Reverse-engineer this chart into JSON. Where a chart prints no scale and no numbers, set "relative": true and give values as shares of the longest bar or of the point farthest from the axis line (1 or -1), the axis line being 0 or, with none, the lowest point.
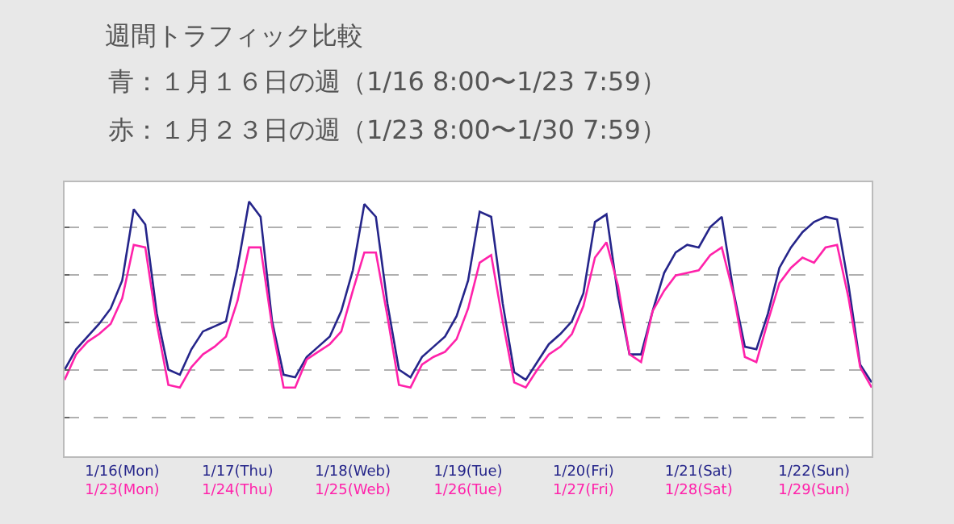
{
  "chart_data": {
    "type": "line",
    "title": "週間トラフィック比較",
    "subtitle": "青：１月１６日の週（1/16 8:00〜1/23 7:59）",
    "annotations": [
      "赤：１月２３日の週（1/23 8:00〜1/30 7:59）"
    ],
    "relative": true,
    "grid": "y",
    "marker": "none",
    "line_style": "solid",
    "categories": [
      null,
      null,
      null,
      null,
      null,
      "1/16(Mon)\n1/23(Mon)",
      null,
      null,
      null,
      null,
      null,
      null,
      null,
      null,
      null,
      "1/17(Thu)\n1/24(Thu)",
      null,
      null,
      null,
      null,
      null,
      null,
      null,
      null,
      null,
      "1/18(Web)\n1/25(Web)",
      null,
      null,
      null,
      null,
      null,
      null,
      null,
      null,
      null,
      "1/19(Tue)\n1/26(Tue)",
      null,
      null,
      null,
      null,
      null,
      null,
      null,
      null,
      null,
      "1/20(Fri)\n1/27(Fri)",
      null,
      null,
      null,
      null,
      null,
      null,
      null,
      null,
      null,
      "1/21(Sat)\n1/28(Sat)",
      null,
      null,
      null,
      null,
      null,
      null,
      null,
      null,
      null,
      "1/22(Sun)\n1/29(Sun)",
      null,
      null,
      null,
      null,
      null
    ],
    "series": [
      {
        "color": "#25258a",
        "values": [
          0.34,
          0.42,
          0.47,
          0.52,
          0.58,
          0.69,
          0.97,
          0.91,
          0.56,
          0.34,
          0.32,
          0.42,
          0.49,
          0.51,
          0.53,
          0.74,
          1.0,
          0.94,
          0.53,
          0.32,
          0.31,
          0.39,
          0.43,
          0.47,
          0.57,
          0.73,
          0.99,
          0.94,
          0.6,
          0.34,
          0.31,
          0.39,
          0.43,
          0.47,
          0.55,
          0.69,
          0.96,
          0.94,
          0.6,
          0.33,
          0.3,
          0.37,
          0.44,
          0.48,
          0.53,
          0.64,
          0.92,
          0.95,
          0.63,
          0.4,
          0.4,
          0.57,
          0.72,
          0.8,
          0.83,
          0.82,
          0.9,
          0.94,
          0.65,
          0.43,
          0.42,
          0.56,
          0.74,
          0.82,
          0.88,
          0.92,
          0.94,
          0.93,
          0.67,
          0.36,
          0.29
        ]
      },
      {
        "color": "#ff22aa",
        "values": [
          0.3,
          0.4,
          0.45,
          0.48,
          0.52,
          0.62,
          0.83,
          0.82,
          0.52,
          0.28,
          0.27,
          0.35,
          0.4,
          0.43,
          0.47,
          0.61,
          0.82,
          0.82,
          0.51,
          0.27,
          0.27,
          0.38,
          0.41,
          0.44,
          0.49,
          0.65,
          0.8,
          0.8,
          0.55,
          0.28,
          0.27,
          0.36,
          0.39,
          0.41,
          0.46,
          0.58,
          0.76,
          0.79,
          0.53,
          0.29,
          0.27,
          0.34,
          0.4,
          0.43,
          0.48,
          0.59,
          0.78,
          0.84,
          0.67,
          0.4,
          0.37,
          0.57,
          0.65,
          0.71,
          0.72,
          0.73,
          0.79,
          0.82,
          0.64,
          0.39,
          0.37,
          0.53,
          0.68,
          0.74,
          0.78,
          0.76,
          0.82,
          0.83,
          0.62,
          0.35,
          0.27
        ]
      }
    ]
  }
}
